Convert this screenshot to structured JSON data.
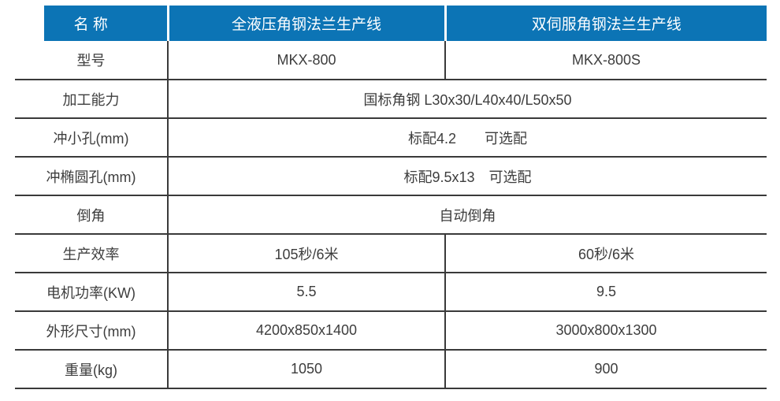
{
  "meta": {
    "description": "角钢法兰生产线规格对比表",
    "accent_color": "#0c74b5",
    "border_color": "#3a3a3a",
    "header_text_color": "#ffffff",
    "body_text_color": "#3d3d3d",
    "background_color": "#ffffff"
  },
  "table": {
    "header": {
      "name_label": "名 称",
      "product1": "全液压角钢法兰生产线",
      "product2": "双伺服角钢法兰生产线"
    },
    "rows": [
      {
        "label": "型号",
        "product1": "MKX-800",
        "product2": "MKX-800S"
      },
      {
        "label": "加工能力",
        "merged": "国标角钢 L30x30/L40x40/L50x50"
      },
      {
        "label": "冲小孔(mm)",
        "merged": "标配4.2　　可选配"
      },
      {
        "label": "冲椭圆孔(mm)",
        "merged": "标配9.5x13　可选配"
      },
      {
        "label": "倒角",
        "merged": "自动倒角"
      },
      {
        "label": "生产效率",
        "product1": "105秒/6米",
        "product2": "60秒/6米"
      },
      {
        "label": "电机功率(KW)",
        "product1": "5.5",
        "product2": "9.5"
      },
      {
        "label": "外形尺寸(mm)",
        "product1": "4200x850x1400",
        "product2": "3000x800x1300"
      },
      {
        "label": "重量(kg)",
        "product1": "1050",
        "product2": "900"
      }
    ]
  }
}
